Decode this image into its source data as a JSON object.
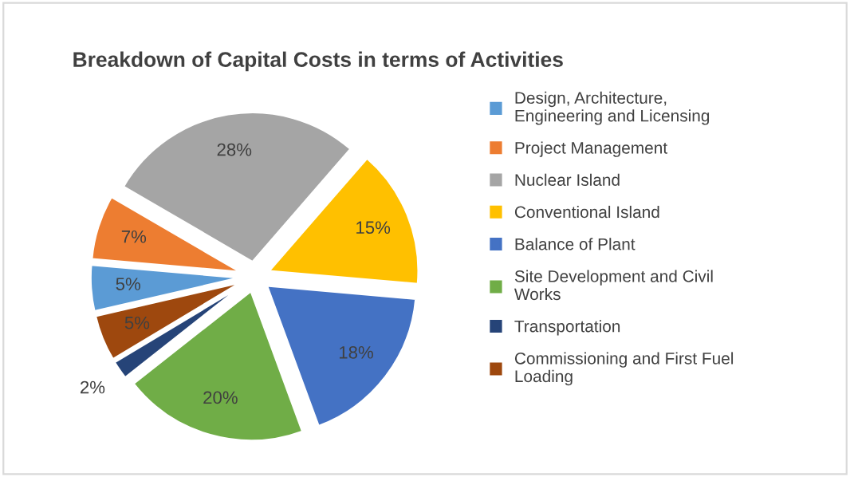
{
  "chart_data": {
    "type": "pie",
    "title": "Breakdown of Capital Costs in terms of Activities",
    "categories": [
      "Design, Architecture, Engineering and Licensing",
      "Project Management",
      "Nuclear Island",
      "Conventional Island",
      "Balance of Plant",
      "Site Development and Civil Works",
      "Transportation",
      "Commissioning and First Fuel Loading"
    ],
    "values": [
      5,
      7,
      28,
      15,
      18,
      20,
      2,
      5
    ],
    "value_labels": [
      "5%",
      "7%",
      "28%",
      "15%",
      "18%",
      "20%",
      "2%",
      "5%"
    ],
    "colors": [
      "#5b9bd5",
      "#ed7d31",
      "#a5a5a5",
      "#ffc000",
      "#4472c4",
      "#70ad47",
      "#264478",
      "#9e480e"
    ],
    "legend": "right"
  }
}
